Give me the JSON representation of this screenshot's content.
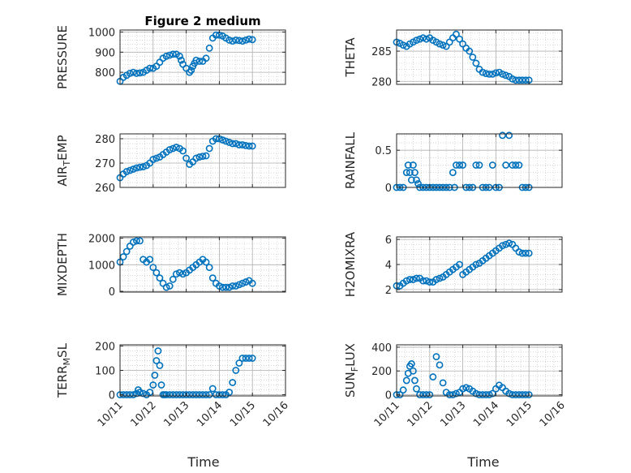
{
  "figure": {
    "title": "Figure 2 medium",
    "x_tick_labels": [
      "10/11",
      "10/12",
      "10/13",
      "10/14",
      "10/15",
      "10/16"
    ],
    "x_axis_label": "Time"
  },
  "colors": {
    "marker": "#0072BD",
    "axes": "#262626",
    "grid": "#c8c8c8"
  },
  "chart_data": [
    {
      "type": "scatter",
      "title": "Figure 2 medium",
      "ylabel": "PRESSURE",
      "xlim": [
        0,
        5
      ],
      "ylim": [
        740,
        1010
      ],
      "yticks": [
        800,
        900,
        1000
      ],
      "grid": true,
      "x": [
        0.0,
        0.1,
        0.2,
        0.3,
        0.4,
        0.5,
        0.6,
        0.7,
        0.8,
        0.9,
        1.0,
        1.1,
        1.2,
        1.3,
        1.4,
        1.5,
        1.6,
        1.7,
        1.8,
        1.85,
        1.9,
        2.0,
        2.1,
        2.15,
        2.2,
        2.25,
        2.3,
        2.4,
        2.5,
        2.6,
        2.7,
        2.8,
        2.9,
        3.0,
        3.1,
        3.2,
        3.3,
        3.4,
        3.5,
        3.6,
        3.7,
        3.8,
        3.9,
        4.0
      ],
      "y": [
        755,
        775,
        785,
        795,
        800,
        795,
        797,
        800,
        810,
        820,
        820,
        830,
        850,
        870,
        880,
        885,
        890,
        890,
        880,
        860,
        840,
        820,
        800,
        810,
        830,
        845,
        860,
        855,
        855,
        870,
        920,
        970,
        985,
        985,
        980,
        970,
        960,
        955,
        960,
        958,
        955,
        960,
        965,
        962
      ]
    },
    {
      "type": "scatter",
      "title": "",
      "ylabel": "THETA",
      "xlim": [
        0,
        5
      ],
      "ylim": [
        279.5,
        288.5
      ],
      "yticks": [
        280,
        285
      ],
      "grid": true,
      "x": [
        0.0,
        0.1,
        0.2,
        0.3,
        0.4,
        0.5,
        0.6,
        0.7,
        0.8,
        0.9,
        1.0,
        1.1,
        1.2,
        1.3,
        1.4,
        1.5,
        1.6,
        1.7,
        1.8,
        1.9,
        2.0,
        2.1,
        2.2,
        2.3,
        2.4,
        2.5,
        2.6,
        2.7,
        2.8,
        2.9,
        3.0,
        3.1,
        3.2,
        3.3,
        3.4,
        3.5,
        3.6,
        3.7,
        3.8,
        3.9,
        4.0
      ],
      "y": [
        286.5,
        286.3,
        286.0,
        285.8,
        286.2,
        286.5,
        286.8,
        287.0,
        287.2,
        287.0,
        287.2,
        286.8,
        286.5,
        286.2,
        286.0,
        285.8,
        286.5,
        287.2,
        287.8,
        287.0,
        286.2,
        285.5,
        285.0,
        284.0,
        283.0,
        282.0,
        281.5,
        281.3,
        281.2,
        281.2,
        281.4,
        281.5,
        281.2,
        281.0,
        280.8,
        280.4,
        280.2,
        280.2,
        280.2,
        280.2,
        280.2
      ]
    },
    {
      "type": "scatter",
      "title": "",
      "ylabel": "AIR_TEMP",
      "xlim": [
        0,
        5
      ],
      "ylim": [
        260,
        282
      ],
      "yticks": [
        260,
        270,
        280
      ],
      "grid": true,
      "x": [
        0.0,
        0.1,
        0.2,
        0.3,
        0.4,
        0.5,
        0.6,
        0.7,
        0.8,
        0.9,
        1.0,
        1.1,
        1.2,
        1.3,
        1.4,
        1.5,
        1.6,
        1.7,
        1.8,
        1.9,
        2.0,
        2.1,
        2.2,
        2.3,
        2.4,
        2.5,
        2.6,
        2.7,
        2.8,
        2.9,
        3.0,
        3.1,
        3.2,
        3.3,
        3.4,
        3.5,
        3.6,
        3.7,
        3.8,
        3.9,
        4.0
      ],
      "y": [
        264,
        265.5,
        266.5,
        267,
        267.5,
        268,
        268.3,
        268.5,
        269,
        270,
        271.5,
        272,
        272.5,
        273.5,
        274.5,
        275.5,
        276,
        276.5,
        276,
        275,
        272,
        269.5,
        270.5,
        272,
        272.5,
        272.8,
        273,
        276,
        279,
        280,
        280,
        279.5,
        279,
        278.5,
        278,
        278,
        277.5,
        277.5,
        277.2,
        277,
        277
      ]
    },
    {
      "type": "scatter",
      "title": "",
      "ylabel": "RAINFALL",
      "xlim": [
        0,
        5
      ],
      "ylim": [
        0,
        0.72
      ],
      "yticks": [
        0,
        0.5
      ],
      "grid": true,
      "x": [
        0.0,
        0.1,
        0.2,
        0.3,
        0.35,
        0.4,
        0.45,
        0.5,
        0.55,
        0.6,
        0.65,
        0.7,
        0.8,
        0.9,
        1.0,
        1.1,
        1.2,
        1.3,
        1.4,
        1.5,
        1.6,
        1.7,
        1.75,
        1.8,
        1.9,
        2.0,
        2.1,
        2.2,
        2.3,
        2.4,
        2.5,
        2.6,
        2.7,
        2.8,
        2.9,
        3.0,
        3.1,
        3.2,
        3.3,
        3.4,
        3.5,
        3.6,
        3.7,
        3.8,
        3.9,
        4.0
      ],
      "y": [
        0,
        0,
        0,
        0.2,
        0.3,
        0.2,
        0.1,
        0.3,
        0.2,
        0.1,
        0.05,
        0,
        0,
        0,
        0,
        0,
        0,
        0,
        0,
        0,
        0,
        0.2,
        0,
        0.3,
        0.3,
        0.3,
        0,
        0,
        0,
        0.3,
        0.3,
        0,
        0,
        0,
        0.3,
        0,
        0,
        0.7,
        0.3,
        0.7,
        0.3,
        0.3,
        0.3,
        0,
        0,
        0
      ]
    },
    {
      "type": "scatter",
      "title": "",
      "ylabel": "MIXDEPTH",
      "xlim": [
        0,
        5
      ],
      "ylim": [
        -30,
        2050
      ],
      "yticks": [
        0,
        1000,
        2000
      ],
      "grid": true,
      "x": [
        0.0,
        0.1,
        0.2,
        0.3,
        0.4,
        0.5,
        0.6,
        0.7,
        0.8,
        0.9,
        1.0,
        1.1,
        1.2,
        1.3,
        1.4,
        1.5,
        1.6,
        1.7,
        1.8,
        1.9,
        2.0,
        2.1,
        2.2,
        2.3,
        2.4,
        2.5,
        2.6,
        2.7,
        2.8,
        2.9,
        3.0,
        3.1,
        3.2,
        3.3,
        3.4,
        3.5,
        3.6,
        3.7,
        3.8,
        3.9,
        4.0
      ],
      "y": [
        1100,
        1300,
        1500,
        1700,
        1850,
        1900,
        1900,
        1200,
        1100,
        1200,
        900,
        700,
        500,
        300,
        150,
        200,
        450,
        650,
        700,
        650,
        700,
        800,
        900,
        1000,
        1100,
        1200,
        1100,
        900,
        500,
        300,
        200,
        150,
        150,
        150,
        200,
        200,
        250,
        300,
        350,
        400,
        300
      ]
    },
    {
      "type": "scatter",
      "title": "",
      "ylabel": "H2OMIXRA",
      "xlim": [
        0,
        5
      ],
      "ylim": [
        1.8,
        6.2
      ],
      "yticks": [
        2,
        4,
        6
      ],
      "grid": true,
      "x": [
        0.0,
        0.1,
        0.2,
        0.3,
        0.4,
        0.5,
        0.6,
        0.7,
        0.8,
        0.9,
        1.0,
        1.1,
        1.2,
        1.3,
        1.4,
        1.5,
        1.6,
        1.7,
        1.8,
        1.9,
        2.0,
        2.1,
        2.2,
        2.3,
        2.4,
        2.5,
        2.6,
        2.7,
        2.8,
        2.9,
        3.0,
        3.1,
        3.2,
        3.3,
        3.4,
        3.5,
        3.6,
        3.7,
        3.8,
        3.9,
        4.0
      ],
      "y": [
        2.3,
        2.3,
        2.5,
        2.7,
        2.8,
        2.8,
        2.9,
        2.9,
        2.7,
        2.7,
        2.6,
        2.6,
        2.8,
        2.9,
        3.0,
        3.2,
        3.4,
        3.6,
        3.8,
        4.0,
        3.2,
        3.4,
        3.6,
        3.8,
        4.0,
        4.1,
        4.3,
        4.5,
        4.7,
        4.9,
        5.1,
        5.3,
        5.5,
        5.6,
        5.7,
        5.6,
        5.3,
        5.0,
        4.9,
        4.9,
        4.9
      ]
    },
    {
      "type": "scatter",
      "title": "",
      "ylabel": "TERR_MSL",
      "xlim": [
        0,
        5
      ],
      "ylim": [
        -5,
        205
      ],
      "yticks": [
        0,
        100,
        200
      ],
      "grid": true,
      "x": [
        0.0,
        0.1,
        0.2,
        0.3,
        0.4,
        0.5,
        0.55,
        0.6,
        0.7,
        0.8,
        0.9,
        1.0,
        1.05,
        1.1,
        1.15,
        1.2,
        1.25,
        1.3,
        1.35,
        1.4,
        1.5,
        1.6,
        1.7,
        1.8,
        1.9,
        2.0,
        2.1,
        2.2,
        2.3,
        2.4,
        2.5,
        2.6,
        2.7,
        2.8,
        2.9,
        3.0,
        3.1,
        3.2,
        3.3,
        3.4,
        3.5,
        3.6,
        3.7,
        3.8,
        3.9,
        4.0
      ],
      "y": [
        0,
        0,
        0,
        0,
        0,
        5,
        20,
        10,
        5,
        0,
        10,
        40,
        80,
        140,
        180,
        120,
        40,
        0,
        0,
        0,
        0,
        0,
        0,
        0,
        0,
        0,
        0,
        0,
        0,
        0,
        0,
        0,
        0,
        25,
        0,
        0,
        0,
        0,
        10,
        50,
        100,
        130,
        150,
        150,
        150,
        150
      ]
    },
    {
      "type": "scatter",
      "title": "",
      "ylabel": "SUN_FLUX",
      "xlim": [
        0,
        5
      ],
      "ylim": [
        -10,
        420
      ],
      "yticks": [
        0,
        200,
        400
      ],
      "grid": true,
      "x": [
        0.0,
        0.1,
        0.2,
        0.3,
        0.35,
        0.4,
        0.45,
        0.5,
        0.55,
        0.6,
        0.7,
        0.8,
        0.9,
        1.0,
        1.1,
        1.2,
        1.3,
        1.4,
        1.5,
        1.6,
        1.7,
        1.8,
        1.9,
        2.0,
        2.1,
        2.2,
        2.3,
        2.4,
        2.5,
        2.6,
        2.7,
        2.8,
        2.9,
        3.0,
        3.1,
        3.2,
        3.3,
        3.4,
        3.5,
        3.6,
        3.7,
        3.8,
        3.9,
        4.0
      ],
      "y": [
        0,
        0,
        40,
        120,
        180,
        240,
        260,
        200,
        120,
        50,
        0,
        0,
        0,
        0,
        150,
        320,
        250,
        100,
        20,
        0,
        0,
        10,
        20,
        50,
        60,
        50,
        30,
        10,
        0,
        0,
        0,
        0,
        10,
        50,
        80,
        60,
        30,
        10,
        0,
        0,
        0,
        0,
        0,
        0
      ]
    }
  ]
}
